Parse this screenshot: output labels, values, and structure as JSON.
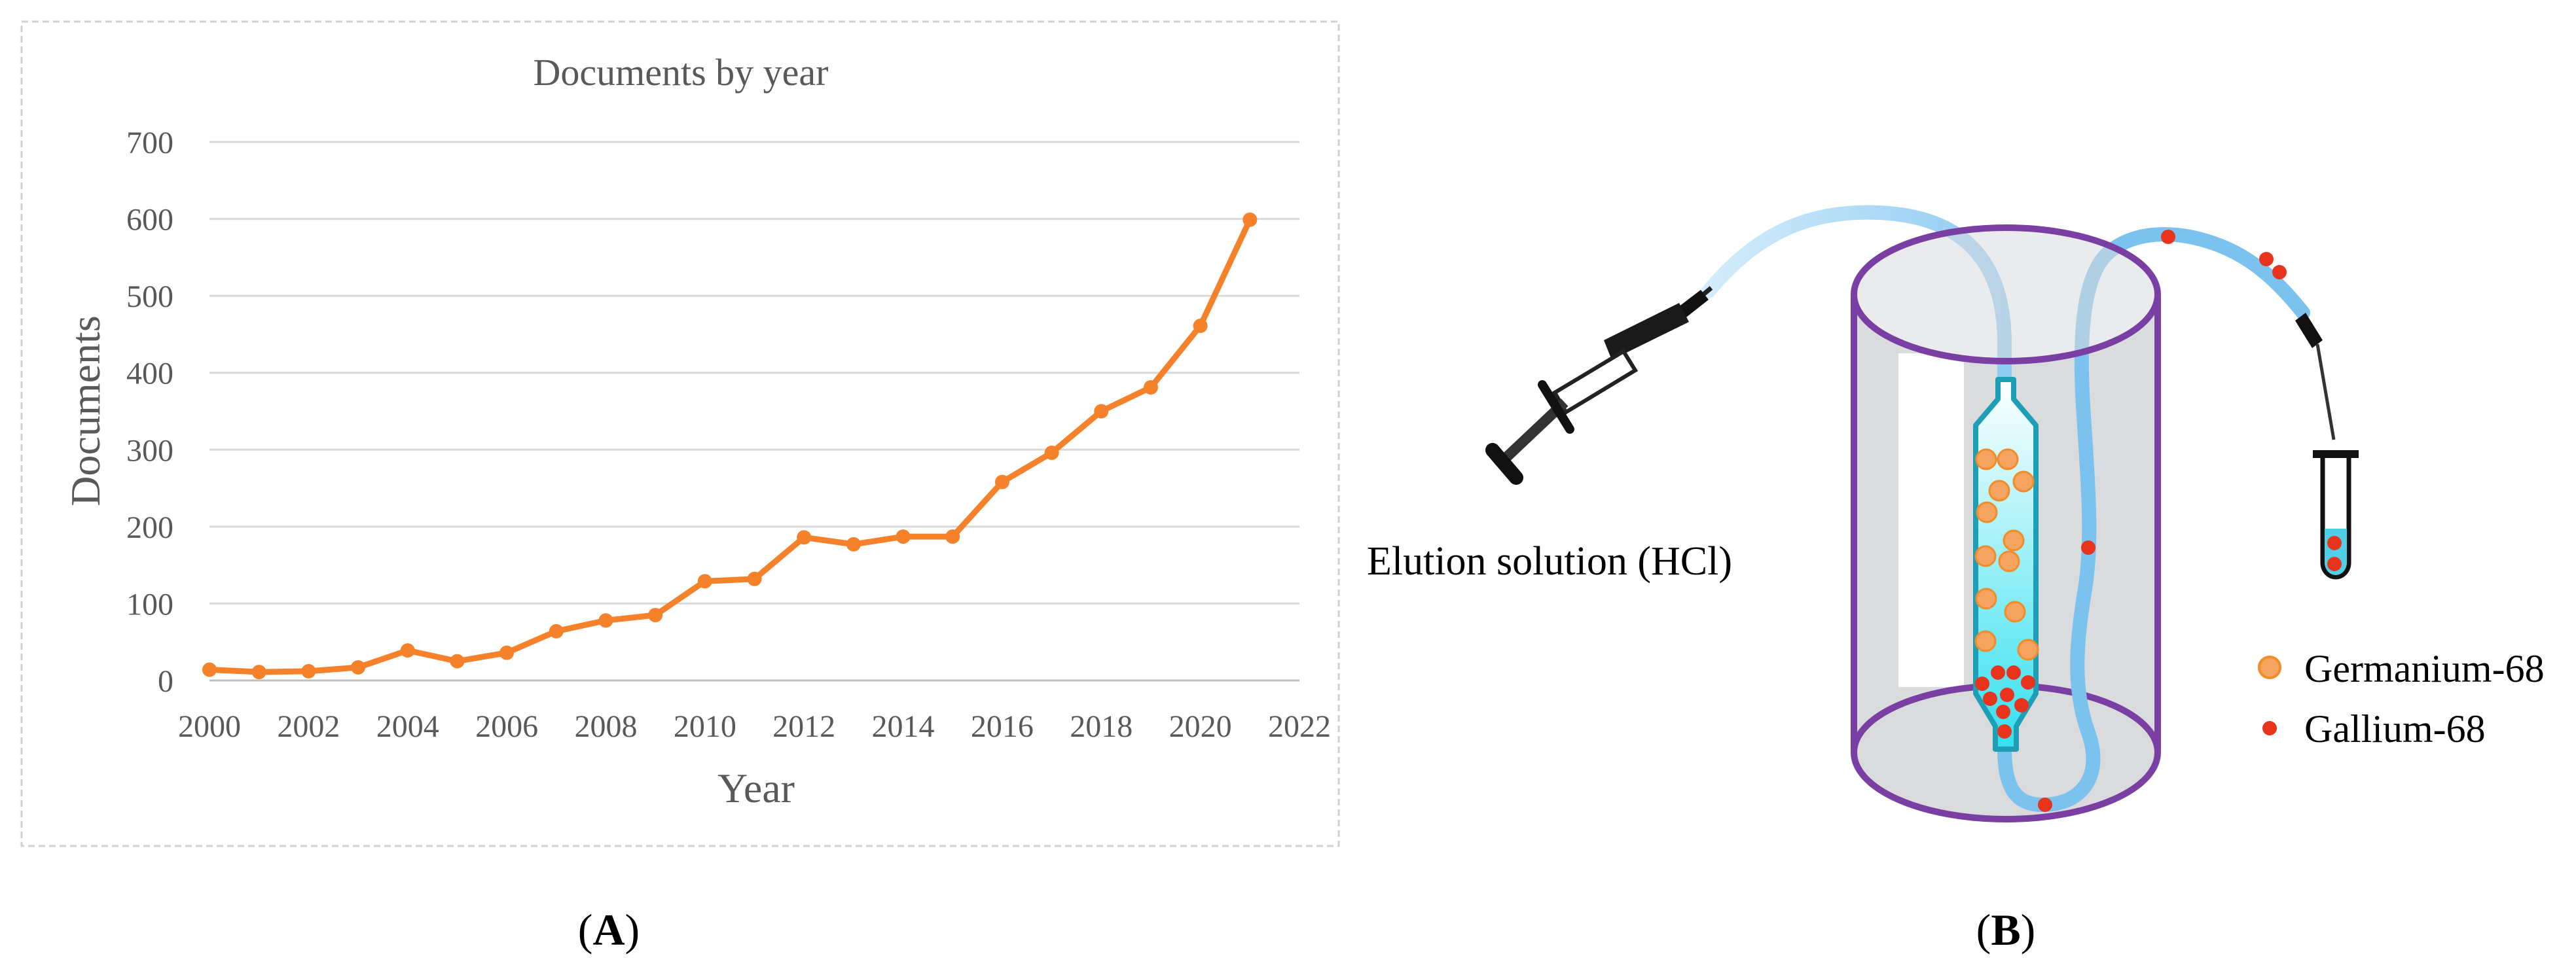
{
  "panels": {
    "a": {
      "label_open": "(",
      "label_letter": "A",
      "label_close": ")"
    },
    "b": {
      "label_open": "(",
      "label_letter": "B",
      "label_close": ")"
    }
  },
  "chart_data": {
    "type": "line",
    "title": "Documents by year",
    "xlabel": "Year",
    "ylabel": "Documents",
    "xlim": [
      2000,
      2022
    ],
    "ylim": [
      0,
      700
    ],
    "x_ticks": [
      "2000",
      "2002",
      "2004",
      "2006",
      "2008",
      "2010",
      "2012",
      "2014",
      "2016",
      "2018",
      "2020",
      "2022"
    ],
    "y_ticks": [
      "0",
      "100",
      "200",
      "300",
      "400",
      "500",
      "600",
      "700"
    ],
    "grid": true,
    "series": [
      {
        "color": "#F5822A",
        "x": [
          2000,
          2001,
          2002,
          2003,
          2004,
          2005,
          2006,
          2007,
          2008,
          2009,
          2010,
          2011,
          2012,
          2013,
          2014,
          2015,
          2016,
          2017,
          2018,
          2019,
          2020,
          2021
        ],
        "y": [
          14,
          11,
          12,
          17,
          39,
          25,
          36,
          64,
          78,
          85,
          129,
          132,
          186,
          177,
          187,
          187,
          258,
          296,
          350,
          381,
          461,
          599
        ]
      }
    ]
  },
  "diagram": {
    "elution_label": "Elution solution (HCl)",
    "legend": [
      {
        "name": "Germanium-68",
        "color": "#F4A460"
      },
      {
        "name": "Gallium-68",
        "color": "#E8341C"
      }
    ]
  }
}
